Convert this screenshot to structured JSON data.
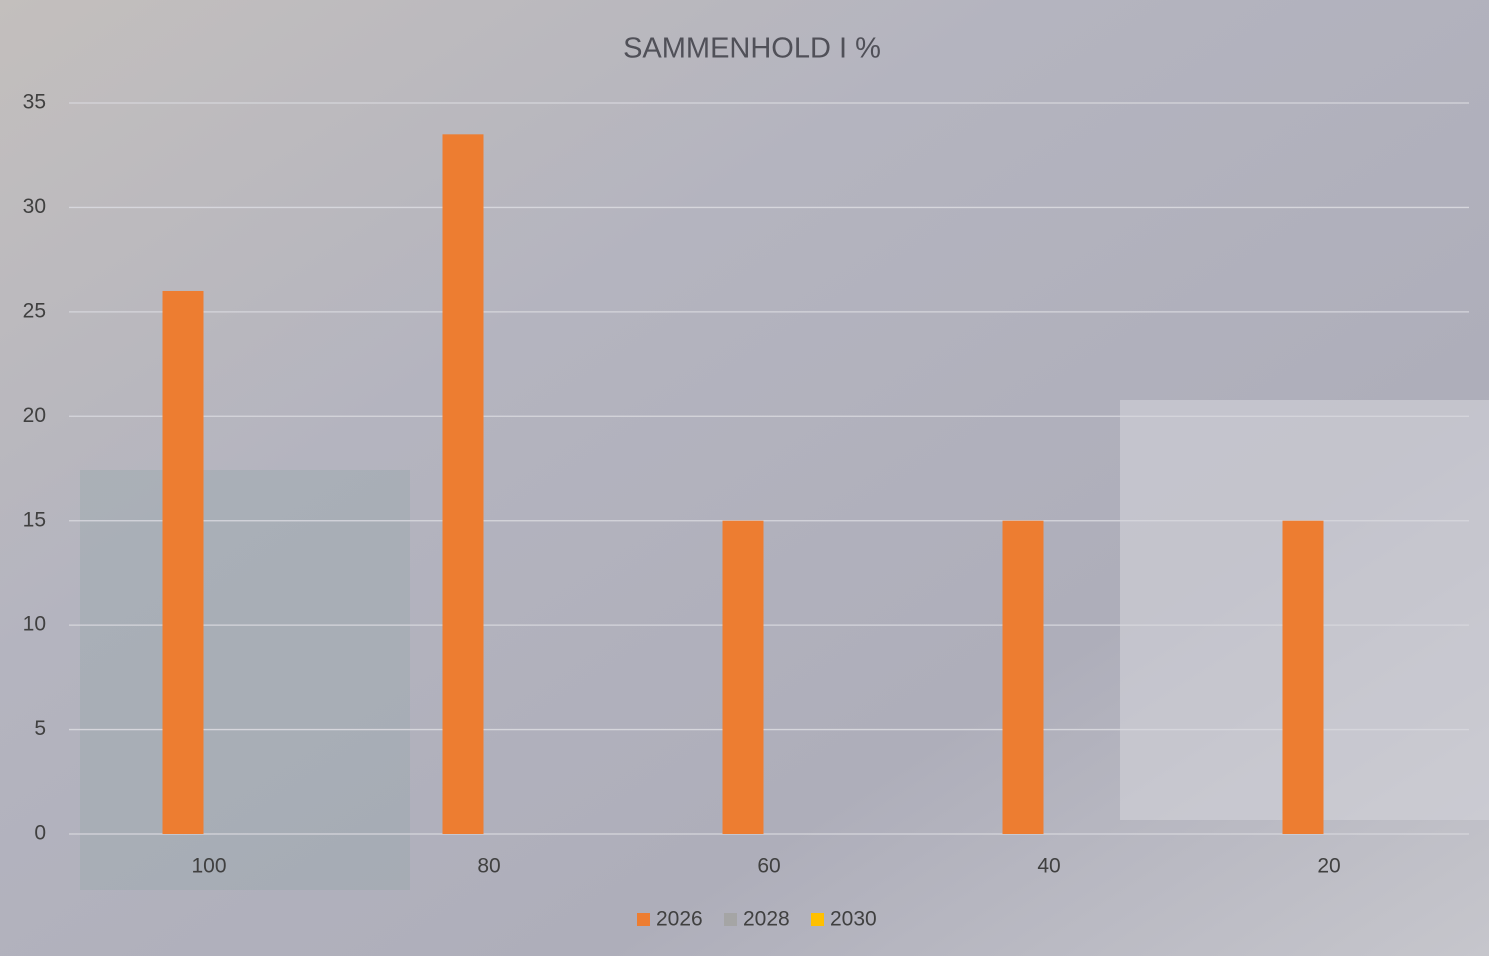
{
  "chart_data": {
    "type": "bar",
    "title": "SAMMENHOLD  I %",
    "categories": [
      "100",
      "80",
      "60",
      "40",
      "20"
    ],
    "series": [
      {
        "name": "2026",
        "color": "#ed7d31",
        "values": [
          26,
          33.5,
          15,
          15,
          15
        ]
      },
      {
        "name": "2028",
        "color": "#a5a5a5",
        "values": [
          null,
          null,
          null,
          null,
          null
        ]
      },
      {
        "name": "2030",
        "color": "#ffc000",
        "values": [
          null,
          null,
          null,
          null,
          null
        ]
      }
    ],
    "ylim": [
      0,
      35
    ],
    "yticks": [
      0,
      5,
      10,
      15,
      20,
      25,
      30,
      35
    ],
    "grid": true,
    "legend": "bottom"
  }
}
